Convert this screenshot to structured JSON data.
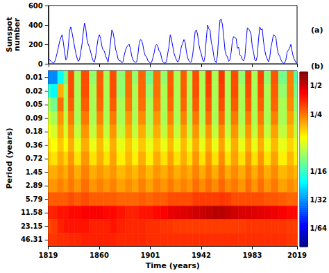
{
  "chart_data": [
    {
      "type": "line",
      "annotation": "(a)",
      "y_label": "Sunspot number",
      "color": "#0000ff",
      "grid": false,
      "tick_labels": "y",
      "xlim": [
        1819,
        2019
      ],
      "xticks": [
        1819,
        1860,
        1901,
        1942,
        1983,
        2019
      ],
      "ylim": [
        0,
        600
      ],
      "yticks": [
        0,
        200,
        400,
        600
      ],
      "x": [
        1819,
        1820,
        1821,
        1822,
        1823,
        1824,
        1825,
        1826,
        1827,
        1828,
        1829,
        1830,
        1831,
        1832,
        1833,
        1834,
        1835,
        1836,
        1837,
        1838,
        1839,
        1840,
        1841,
        1842,
        1843,
        1844,
        1845,
        1846,
        1847,
        1848,
        1849,
        1850,
        1851,
        1852,
        1853,
        1854,
        1855,
        1856,
        1857,
        1858,
        1859,
        1860,
        1861,
        1862,
        1863,
        1864,
        1865,
        1866,
        1867,
        1868,
        1869,
        1870,
        1871,
        1872,
        1873,
        1874,
        1875,
        1876,
        1877,
        1878,
        1879,
        1880,
        1881,
        1882,
        1883,
        1884,
        1885,
        1886,
        1887,
        1888,
        1889,
        1890,
        1891,
        1892,
        1893,
        1894,
        1895,
        1896,
        1897,
        1898,
        1899,
        1900,
        1901,
        1902,
        1903,
        1904,
        1905,
        1906,
        1907,
        1908,
        1909,
        1910,
        1911,
        1912,
        1913,
        1914,
        1915,
        1916,
        1917,
        1918,
        1919,
        1920,
        1921,
        1922,
        1923,
        1924,
        1925,
        1926,
        1927,
        1928,
        1929,
        1930,
        1931,
        1932,
        1933,
        1934,
        1935,
        1936,
        1937,
        1938,
        1939,
        1940,
        1941,
        1942,
        1943,
        1944,
        1945,
        1946,
        1947,
        1948,
        1949,
        1950,
        1951,
        1952,
        1953,
        1954,
        1955,
        1956,
        1957,
        1958,
        1959,
        1960,
        1961,
        1962,
        1963,
        1964,
        1965,
        1966,
        1967,
        1968,
        1969,
        1970,
        1971,
        1972,
        1973,
        1974,
        1975,
        1976,
        1977,
        1978,
        1979,
        1980,
        1981,
        1982,
        1983,
        1984,
        1985,
        1986,
        1987,
        1988,
        1989,
        1990,
        1991,
        1992,
        1993,
        1994,
        1995,
        1996,
        1997,
        1998,
        1999,
        2000,
        2001,
        2002,
        2003,
        2004,
        2005,
        2006,
        2007,
        2008,
        2009,
        2010,
        2011,
        2012,
        2013,
        2014,
        2015,
        2016,
        2017,
        2018,
        2019
      ],
      "values": [
        60,
        40,
        25,
        15,
        5,
        20,
        60,
        110,
        170,
        230,
        270,
        300,
        220,
        120,
        40,
        60,
        180,
        340,
        380,
        320,
        250,
        180,
        110,
        60,
        25,
        40,
        120,
        200,
        320,
        420,
        370,
        250,
        200,
        170,
        120,
        70,
        30,
        15,
        80,
        180,
        260,
        300,
        260,
        180,
        140,
        130,
        80,
        50,
        15,
        110,
        230,
        350,
        320,
        250,
        150,
        110,
        50,
        30,
        30,
        10,
        20,
        90,
        140,
        170,
        190,
        200,
        150,
        80,
        40,
        20,
        15,
        20,
        100,
        210,
        250,
        240,
        190,
        120,
        80,
        70,
        30,
        20,
        5,
        15,
        60,
        110,
        180,
        200,
        180,
        130,
        120,
        60,
        20,
        10,
        5,
        25,
        110,
        180,
        300,
        250,
        180,
        110,
        70,
        40,
        15,
        40,
        110,
        180,
        210,
        250,
        220,
        120,
        60,
        30,
        15,
        20,
        90,
        200,
        330,
        350,
        300,
        200,
        140,
        100,
        40,
        20,
        80,
        260,
        400,
        360,
        350,
        220,
        170,
        80,
        30,
        10,
        90,
        300,
        450,
        460,
        400,
        280,
        140,
        90,
        70,
        25,
        40,
        120,
        240,
        280,
        270,
        260,
        160,
        170,
        90,
        80,
        40,
        30,
        70,
        230,
        370,
        360,
        340,
        300,
        170,
        120,
        40,
        30,
        80,
        250,
        380,
        350,
        360,
        230,
        140,
        80,
        50,
        20,
        60,
        170,
        230,
        300,
        290,
        270,
        160,
        100,
        80,
        40,
        20,
        5,
        10,
        40,
        120,
        140,
        160,
        200,
        130,
        70,
        40,
        15,
        5
      ]
    },
    {
      "type": "heatmap",
      "annotation": "(b)",
      "x_label": "Time (years)",
      "y_label": "Period (years)",
      "grid": false,
      "log": "y",
      "xlim": [
        1819,
        2019
      ],
      "xticks": [
        1819,
        1860,
        1901,
        1942,
        1983,
        2019
      ],
      "ylim": [
        0.008,
        64
      ],
      "yticks": [
        {
          "value": 0.011306,
          "label": "0.01"
        },
        {
          "value": 0.022612,
          "label": "0.02"
        },
        {
          "value": 0.045225,
          "label": "0.05"
        },
        {
          "value": 0.09045,
          "label": "0.09"
        },
        {
          "value": 0.1809,
          "label": "0.18"
        },
        {
          "value": 0.3618,
          "label": "0.36"
        },
        {
          "value": 0.7236,
          "label": "0.72"
        },
        {
          "value": 1.4471,
          "label": "1.45"
        },
        {
          "value": 2.8944,
          "label": "2.89"
        },
        {
          "value": 5.7888,
          "label": "5.79"
        },
        {
          "value": 11.5775,
          "label": "11.58"
        },
        {
          "value": 23.155,
          "label": "23.15"
        },
        {
          "value": 46.31,
          "label": "46.31"
        }
      ],
      "x": [
        1819,
        1823,
        1830,
        1833,
        1837,
        1843,
        1848,
        1856,
        1860,
        1867,
        1870,
        1878,
        1884,
        1889,
        1894,
        1901,
        1906,
        1913,
        1917,
        1923,
        1928,
        1933,
        1937,
        1944,
        1947,
        1954,
        1958,
        1964,
        1968,
        1976,
        1979,
        1986,
        1989,
        1996,
        2000,
        2008,
        2014,
        2019
      ],
      "y": [
        0.011306,
        0.022612,
        0.045225,
        0.09045,
        0.1809,
        0.3618,
        0.7236,
        1.4471,
        2.8944,
        5.7888,
        11.5775,
        23.155,
        46.31
      ],
      "values": [
        [
          0.03,
          0.06,
          0.1,
          0.12,
          0.14,
          0.16,
          0.18,
          0.2,
          0.22,
          0.28,
          0.35,
          0.3,
          0.33
        ],
        [
          0.03,
          0.05,
          0.08,
          0.1,
          0.12,
          0.14,
          0.16,
          0.2,
          0.22,
          0.28,
          0.36,
          0.32,
          0.33
        ],
        [
          0.05,
          0.2,
          0.26,
          0.22,
          0.2,
          0.18,
          0.2,
          0.22,
          0.24,
          0.28,
          0.38,
          0.36,
          0.34
        ],
        [
          0.08,
          0.1,
          0.1,
          0.11,
          0.12,
          0.14,
          0.17,
          0.2,
          0.22,
          0.28,
          0.38,
          0.38,
          0.34
        ],
        [
          0.3,
          0.3,
          0.28,
          0.25,
          0.22,
          0.2,
          0.22,
          0.24,
          0.25,
          0.3,
          0.4,
          0.38,
          0.35
        ],
        [
          0.1,
          0.1,
          0.1,
          0.1,
          0.11,
          0.13,
          0.16,
          0.2,
          0.22,
          0.28,
          0.4,
          0.38,
          0.35
        ],
        [
          0.3,
          0.3,
          0.28,
          0.25,
          0.22,
          0.2,
          0.22,
          0.24,
          0.26,
          0.3,
          0.42,
          0.38,
          0.36
        ],
        [
          0.09,
          0.1,
          0.1,
          0.1,
          0.11,
          0.13,
          0.16,
          0.2,
          0.22,
          0.28,
          0.42,
          0.36,
          0.36
        ],
        [
          0.28,
          0.28,
          0.27,
          0.24,
          0.21,
          0.19,
          0.2,
          0.22,
          0.24,
          0.28,
          0.42,
          0.36,
          0.36
        ],
        [
          0.1,
          0.1,
          0.1,
          0.1,
          0.11,
          0.13,
          0.16,
          0.2,
          0.22,
          0.28,
          0.4,
          0.36,
          0.36
        ],
        [
          0.3,
          0.3,
          0.28,
          0.25,
          0.22,
          0.2,
          0.21,
          0.22,
          0.24,
          0.28,
          0.4,
          0.38,
          0.36
        ],
        [
          0.09,
          0.09,
          0.1,
          0.1,
          0.11,
          0.13,
          0.15,
          0.19,
          0.21,
          0.27,
          0.38,
          0.36,
          0.35
        ],
        [
          0.26,
          0.26,
          0.25,
          0.22,
          0.2,
          0.18,
          0.19,
          0.21,
          0.23,
          0.27,
          0.36,
          0.35,
          0.35
        ],
        [
          0.09,
          0.1,
          0.1,
          0.1,
          0.11,
          0.13,
          0.15,
          0.19,
          0.21,
          0.27,
          0.36,
          0.35,
          0.35
        ],
        [
          0.27,
          0.27,
          0.26,
          0.23,
          0.2,
          0.18,
          0.2,
          0.22,
          0.24,
          0.28,
          0.38,
          0.35,
          0.35
        ],
        [
          0.08,
          0.09,
          0.1,
          0.1,
          0.11,
          0.13,
          0.15,
          0.19,
          0.21,
          0.27,
          0.38,
          0.34,
          0.34
        ],
        [
          0.26,
          0.26,
          0.25,
          0.22,
          0.2,
          0.18,
          0.2,
          0.22,
          0.24,
          0.28,
          0.4,
          0.34,
          0.34
        ],
        [
          0.09,
          0.1,
          0.1,
          0.1,
          0.11,
          0.13,
          0.16,
          0.2,
          0.22,
          0.28,
          0.42,
          0.33,
          0.34
        ],
        [
          0.28,
          0.28,
          0.27,
          0.24,
          0.21,
          0.19,
          0.21,
          0.23,
          0.25,
          0.3,
          0.45,
          0.33,
          0.34
        ],
        [
          0.1,
          0.1,
          0.1,
          0.1,
          0.11,
          0.13,
          0.16,
          0.2,
          0.22,
          0.3,
          0.46,
          0.32,
          0.34
        ],
        [
          0.28,
          0.28,
          0.27,
          0.24,
          0.21,
          0.19,
          0.2,
          0.22,
          0.24,
          0.3,
          0.47,
          0.32,
          0.34
        ],
        [
          0.1,
          0.1,
          0.1,
          0.1,
          0.11,
          0.13,
          0.16,
          0.2,
          0.22,
          0.3,
          0.48,
          0.32,
          0.34
        ],
        [
          0.3,
          0.3,
          0.28,
          0.25,
          0.22,
          0.2,
          0.22,
          0.24,
          0.26,
          0.32,
          0.5,
          0.32,
          0.34
        ],
        [
          0.1,
          0.1,
          0.1,
          0.1,
          0.11,
          0.13,
          0.16,
          0.2,
          0.23,
          0.32,
          0.52,
          0.32,
          0.34
        ],
        [
          0.32,
          0.31,
          0.29,
          0.26,
          0.22,
          0.2,
          0.22,
          0.24,
          0.26,
          0.32,
          0.53,
          0.32,
          0.34
        ],
        [
          0.1,
          0.1,
          0.1,
          0.1,
          0.11,
          0.13,
          0.16,
          0.2,
          0.23,
          0.32,
          0.55,
          0.32,
          0.34
        ],
        [
          0.33,
          0.32,
          0.3,
          0.27,
          0.23,
          0.21,
          0.23,
          0.25,
          0.27,
          0.33,
          0.55,
          0.32,
          0.34
        ],
        [
          0.1,
          0.1,
          0.1,
          0.1,
          0.11,
          0.13,
          0.16,
          0.2,
          0.23,
          0.32,
          0.53,
          0.32,
          0.34
        ],
        [
          0.3,
          0.3,
          0.28,
          0.25,
          0.22,
          0.2,
          0.21,
          0.23,
          0.25,
          0.3,
          0.5,
          0.32,
          0.34
        ],
        [
          0.09,
          0.1,
          0.1,
          0.1,
          0.11,
          0.13,
          0.16,
          0.2,
          0.22,
          0.3,
          0.48,
          0.32,
          0.34
        ],
        [
          0.31,
          0.3,
          0.28,
          0.25,
          0.22,
          0.2,
          0.22,
          0.24,
          0.26,
          0.3,
          0.48,
          0.33,
          0.34
        ],
        [
          0.1,
          0.1,
          0.1,
          0.1,
          0.11,
          0.13,
          0.16,
          0.2,
          0.22,
          0.3,
          0.47,
          0.33,
          0.34
        ],
        [
          0.31,
          0.3,
          0.28,
          0.25,
          0.22,
          0.2,
          0.22,
          0.24,
          0.26,
          0.3,
          0.46,
          0.33,
          0.34
        ],
        [
          0.09,
          0.1,
          0.1,
          0.1,
          0.11,
          0.13,
          0.16,
          0.2,
          0.22,
          0.29,
          0.45,
          0.33,
          0.34
        ],
        [
          0.29,
          0.28,
          0.27,
          0.24,
          0.21,
          0.19,
          0.21,
          0.23,
          0.25,
          0.29,
          0.44,
          0.33,
          0.34
        ],
        [
          0.08,
          0.09,
          0.1,
          0.1,
          0.11,
          0.13,
          0.15,
          0.19,
          0.21,
          0.28,
          0.42,
          0.33,
          0.34
        ],
        [
          0.24,
          0.24,
          0.23,
          0.21,
          0.19,
          0.17,
          0.19,
          0.21,
          0.23,
          0.27,
          0.4,
          0.32,
          0.33
        ],
        [
          0.07,
          0.08,
          0.09,
          0.1,
          0.11,
          0.13,
          0.15,
          0.19,
          0.21,
          0.27,
          0.4,
          0.32,
          0.33
        ]
      ],
      "colorbar": {
        "range": [
          0.01,
          0.7
        ],
        "ticks": [
          {
            "value": 0.5,
            "label": "1/2"
          },
          {
            "value": 0.25,
            "label": "1/4"
          },
          {
            "value": 0.0625,
            "label": "1/16"
          },
          {
            "value": 0.03125,
            "label": "1/32"
          },
          {
            "value": 0.015625,
            "label": "1/64"
          }
        ]
      }
    }
  ]
}
